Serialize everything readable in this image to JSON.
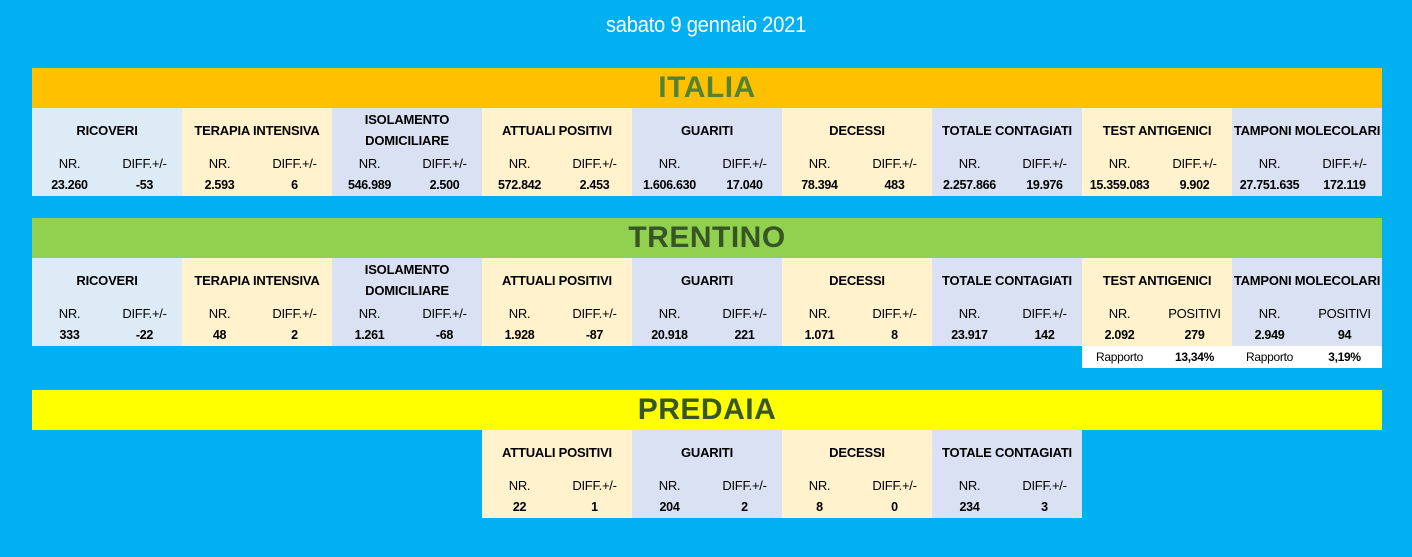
{
  "date": "sabato 9 gennaio 2021",
  "italia": {
    "title": "ITALIA",
    "cells": [
      {
        "title": "RICOVERI",
        "l1": "NR.",
        "l2": "DIFF.+/-",
        "v1": "23.260",
        "v2": "-53"
      },
      {
        "title": "TERAPIA INTENSIVA",
        "l1": "NR.",
        "l2": "DIFF.+/-",
        "v1": "2.593",
        "v2": "6"
      },
      {
        "title": "ISOLAMENTO DOMICILIARE",
        "l1": "NR.",
        "l2": "DIFF.+/-",
        "v1": "546.989",
        "v2": "2.500"
      },
      {
        "title": "ATTUALI POSITIVI",
        "l1": "NR.",
        "l2": "DIFF.+/-",
        "v1": "572.842",
        "v2": "2.453"
      },
      {
        "title": "GUARITI",
        "l1": "NR.",
        "l2": "DIFF.+/-",
        "v1": "1.606.630",
        "v2": "17.040"
      },
      {
        "title": "DECESSI",
        "l1": "NR.",
        "l2": "DIFF.+/-",
        "v1": "78.394",
        "v2": "483"
      },
      {
        "title": "TOTALE CONTAGIATI",
        "l1": "NR.",
        "l2": "DIFF.+/-",
        "v1": "2.257.866",
        "v2": "19.976"
      },
      {
        "title": "TEST ANTIGENICI",
        "l1": "NR.",
        "l2": "DIFF.+/-",
        "v1": "15.359.083",
        "v2": "9.902"
      },
      {
        "title": "TAMPONI MOLECOLARI",
        "l1": "NR.",
        "l2": "DIFF.+/-",
        "v1": "27.751.635",
        "v2": "172.119"
      }
    ]
  },
  "trentino": {
    "title": "TRENTINO",
    "cells": [
      {
        "title": "RICOVERI",
        "l1": "NR.",
        "l2": "DIFF.+/-",
        "v1": "333",
        "v2": "-22"
      },
      {
        "title": "TERAPIA INTENSIVA",
        "l1": "NR.",
        "l2": "DIFF.+/-",
        "v1": "48",
        "v2": "2"
      },
      {
        "title": "ISOLAMENTO DOMICILIARE",
        "l1": "NR.",
        "l2": "DIFF.+/-",
        "v1": "1.261",
        "v2": "-68"
      },
      {
        "title": "ATTUALI POSITIVI",
        "l1": "NR.",
        "l2": "DIFF.+/-",
        "v1": "1.928",
        "v2": "-87"
      },
      {
        "title": "GUARITI",
        "l1": "NR.",
        "l2": "DIFF.+/-",
        "v1": "20.918",
        "v2": "221"
      },
      {
        "title": "DECESSI",
        "l1": "NR.",
        "l2": "DIFF.+/-",
        "v1": "1.071",
        "v2": "8"
      },
      {
        "title": "TOTALE CONTAGIATI",
        "l1": "NR.",
        "l2": "DIFF.+/-",
        "v1": "23.917",
        "v2": "142"
      },
      {
        "title": "TEST ANTIGENICI",
        "l1": "NR.",
        "l2": "POSITIVI",
        "v1": "2.092",
        "v2": "279"
      },
      {
        "title": "TAMPONI MOLECOLARI",
        "l1": "NR.",
        "l2": "POSITIVI",
        "v1": "2.949",
        "v2": "94"
      }
    ],
    "rapporto_antigenici": {
      "label": "Rapporto",
      "value": "13,34%"
    },
    "rapporto_molecolari": {
      "label": "Rapporto",
      "value": "3,19%"
    }
  },
  "predaia": {
    "title": "PREDAIA",
    "cells": [
      {
        "title": "ATTUALI POSITIVI",
        "l1": "NR.",
        "l2": "DIFF.+/-",
        "v1": "22",
        "v2": "1"
      },
      {
        "title": "GUARITI",
        "l1": "NR.",
        "l2": "DIFF.+/-",
        "v1": "204",
        "v2": "2"
      },
      {
        "title": "DECESSI",
        "l1": "NR.",
        "l2": "DIFF.+/-",
        "v1": "8",
        "v2": "0"
      },
      {
        "title": "TOTALE CONTAGIATI",
        "l1": "NR.",
        "l2": "DIFF.+/-",
        "v1": "234",
        "v2": "3"
      }
    ]
  },
  "colors": {
    "background": "#00b0f0",
    "italia_banner": "#ffc000",
    "trentino_banner": "#92d050",
    "predaia_banner": "#ffff00",
    "cell_blue": "#ddebf7",
    "cell_cream": "#fff2cc",
    "cell_lavender": "#d9e1f2"
  }
}
